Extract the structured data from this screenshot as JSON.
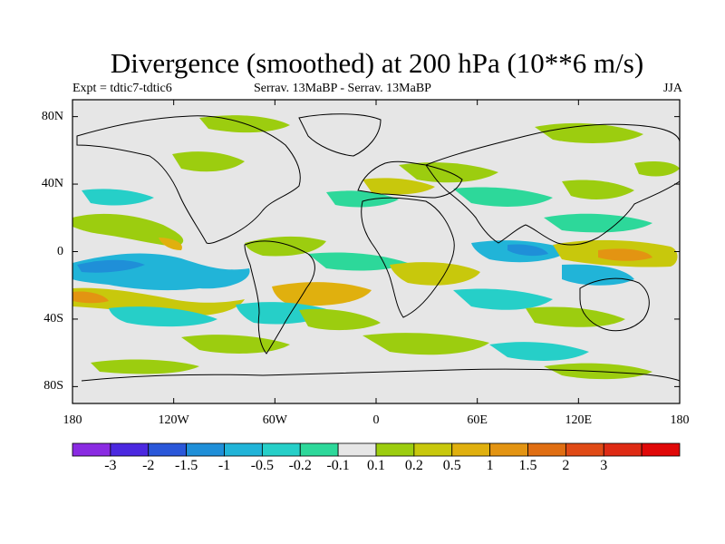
{
  "title": "Divergence (smoothed) at 200 hPa (10**6 m/s)",
  "subtitle_left": "Expt = tdtic7-tdtic6",
  "subtitle_center": "Serrav.   13MaBP - Serrav.   13MaBP",
  "subtitle_right": "JJA",
  "map": {
    "lon_range": [
      -180,
      180
    ],
    "lat_range": [
      -90,
      90
    ],
    "y_ticks": [
      {
        "label": "80N",
        "lat": 80
      },
      {
        "label": "40N",
        "lat": 40
      },
      {
        "label": "0",
        "lat": 0
      },
      {
        "label": "40S",
        "lat": -40
      },
      {
        "label": "80S",
        "lat": -80
      }
    ],
    "x_ticks": [
      {
        "label": "180",
        "lon": -180
      },
      {
        "label": "120W",
        "lon": -120
      },
      {
        "label": "60W",
        "lon": -60
      },
      {
        "label": "0",
        "lon": 0
      },
      {
        "label": "60E",
        "lon": 60
      },
      {
        "label": "120E",
        "lon": 120
      },
      {
        "label": "180",
        "lon": 180
      }
    ]
  },
  "colorbar": {
    "colors": [
      "#8a2be2",
      "#4b28e0",
      "#2a57d9",
      "#1f8fd8",
      "#21b4d8",
      "#26cfc8",
      "#2dd89a",
      "#e6e6e6",
      "#9ccd0f",
      "#c8c80c",
      "#e0b00e",
      "#e39412",
      "#e06e12",
      "#e04a16",
      "#de2a14",
      "#e00808"
    ],
    "labels": [
      "-3",
      "-2",
      "-1.5",
      "-1",
      "-0.5",
      "-0.2",
      "-0.1",
      "0.1",
      "0.2",
      "0.5",
      "1",
      "1.5",
      "2",
      "3"
    ]
  }
}
